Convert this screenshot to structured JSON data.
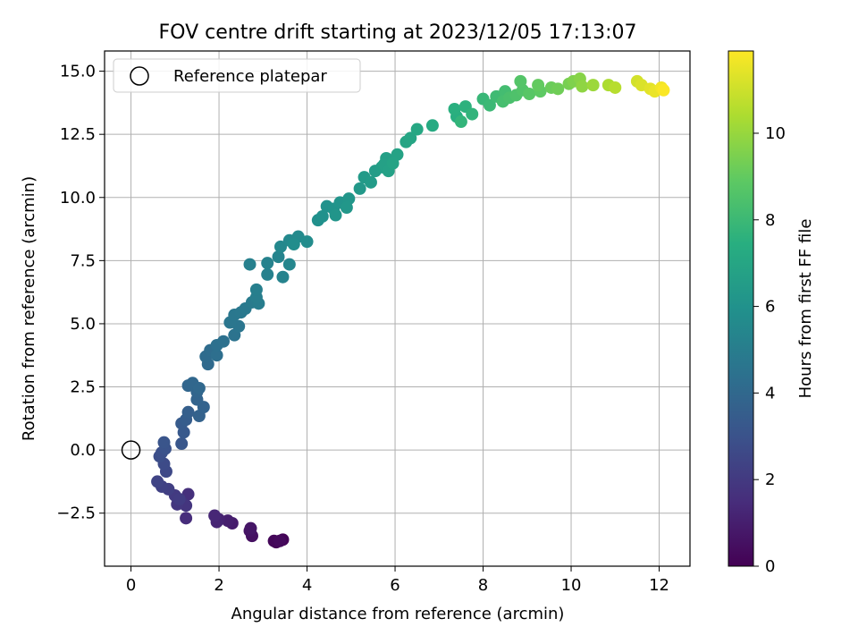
{
  "chart_data": {
    "type": "scatter",
    "title": "FOV centre drift starting at 2023/12/05 17:13:07",
    "xlabel": "Angular distance from reference (arcmin)",
    "ylabel": "Rotation from reference (arcmin)",
    "xlim": [
      -0.6,
      12.7
    ],
    "ylim": [
      -4.6,
      15.8
    ],
    "xticks": [
      0,
      2,
      4,
      6,
      8,
      10,
      12
    ],
    "xtick_labels": [
      "0",
      "2",
      "4",
      "6",
      "8",
      "10",
      "12"
    ],
    "yticks": [
      -2.5,
      0.0,
      2.5,
      5.0,
      7.5,
      10.0,
      12.5,
      15.0
    ],
    "ytick_labels": [
      "−2.5",
      "0.0",
      "2.5",
      "5.0",
      "7.5",
      "10.0",
      "12.5",
      "15.0"
    ],
    "grid": true,
    "legend": {
      "position": "top-left",
      "entries": [
        "Reference platepar"
      ]
    },
    "reference_point": {
      "x": 0,
      "y": 0,
      "label": "Reference platepar"
    },
    "colorbar": {
      "label": "Hours from first FF file",
      "colormap": "viridis",
      "range": [
        0,
        11.9
      ],
      "ticks": [
        0,
        2,
        4,
        6,
        8,
        10
      ],
      "tick_labels": [
        "0",
        "2",
        "4",
        "6",
        "8",
        "10"
      ]
    },
    "series": [
      {
        "points": [
          {
            "x": 3.3,
            "y": -3.65,
            "t": 0.0
          },
          {
            "x": 3.45,
            "y": -3.55,
            "t": 0.1
          },
          {
            "x": 3.25,
            "y": -3.6,
            "t": 0.2
          },
          {
            "x": 3.38,
            "y": -3.6,
            "t": 0.3
          },
          {
            "x": 2.75,
            "y": -3.4,
            "t": 0.5
          },
          {
            "x": 2.7,
            "y": -3.2,
            "t": 0.6
          },
          {
            "x": 2.72,
            "y": -3.1,
            "t": 0.7
          },
          {
            "x": 2.3,
            "y": -2.9,
            "t": 0.9
          },
          {
            "x": 2.2,
            "y": -2.8,
            "t": 1.0
          },
          {
            "x": 2.0,
            "y": -2.75,
            "t": 1.1
          },
          {
            "x": 1.95,
            "y": -2.85,
            "t": 1.2
          },
          {
            "x": 1.9,
            "y": -2.6,
            "t": 1.3
          },
          {
            "x": 1.25,
            "y": -2.7,
            "t": 1.5
          },
          {
            "x": 1.3,
            "y": -1.75,
            "t": 1.6
          },
          {
            "x": 1.15,
            "y": -2.05,
            "t": 1.7
          },
          {
            "x": 1.25,
            "y": -2.2,
            "t": 1.8
          },
          {
            "x": 1.05,
            "y": -2.15,
            "t": 1.9
          },
          {
            "x": 1.0,
            "y": -1.8,
            "t": 2.0
          },
          {
            "x": 1.1,
            "y": -1.95,
            "t": 2.1
          },
          {
            "x": 0.85,
            "y": -1.55,
            "t": 2.2
          },
          {
            "x": 0.7,
            "y": -1.45,
            "t": 2.3
          },
          {
            "x": 0.6,
            "y": -1.25,
            "t": 2.4
          },
          {
            "x": 0.8,
            "y": -0.85,
            "t": 2.6
          },
          {
            "x": 0.75,
            "y": -0.55,
            "t": 2.7
          },
          {
            "x": 0.65,
            "y": -0.25,
            "t": 2.8
          },
          {
            "x": 0.7,
            "y": -0.1,
            "t": 2.9
          },
          {
            "x": 0.78,
            "y": 0.05,
            "t": 3.0
          },
          {
            "x": 0.75,
            "y": 0.3,
            "t": 3.1
          },
          {
            "x": 1.15,
            "y": 0.25,
            "t": 3.2
          },
          {
            "x": 1.2,
            "y": 0.7,
            "t": 3.3
          },
          {
            "x": 1.15,
            "y": 1.05,
            "t": 3.4
          },
          {
            "x": 1.25,
            "y": 1.2,
            "t": 3.5
          },
          {
            "x": 1.3,
            "y": 1.5,
            "t": 3.6
          },
          {
            "x": 1.55,
            "y": 1.35,
            "t": 3.7
          },
          {
            "x": 1.65,
            "y": 1.7,
            "t": 3.75
          },
          {
            "x": 1.5,
            "y": 2.0,
            "t": 3.8
          },
          {
            "x": 1.5,
            "y": 2.3,
            "t": 3.85
          },
          {
            "x": 1.3,
            "y": 2.55,
            "t": 3.9
          },
          {
            "x": 1.4,
            "y": 2.65,
            "t": 3.95
          },
          {
            "x": 1.55,
            "y": 2.45,
            "t": 4.0
          },
          {
            "x": 1.75,
            "y": 3.4,
            "t": 4.1
          },
          {
            "x": 1.7,
            "y": 3.7,
            "t": 4.15
          },
          {
            "x": 1.8,
            "y": 3.95,
            "t": 4.2
          },
          {
            "x": 1.95,
            "y": 3.75,
            "t": 4.3
          },
          {
            "x": 1.95,
            "y": 4.15,
            "t": 4.35
          },
          {
            "x": 2.1,
            "y": 4.3,
            "t": 4.4
          },
          {
            "x": 2.35,
            "y": 4.55,
            "t": 4.5
          },
          {
            "x": 2.45,
            "y": 4.9,
            "t": 4.6
          },
          {
            "x": 2.25,
            "y": 5.05,
            "t": 4.65
          },
          {
            "x": 2.35,
            "y": 5.35,
            "t": 4.7
          },
          {
            "x": 2.5,
            "y": 5.45,
            "t": 4.75
          },
          {
            "x": 2.6,
            "y": 5.6,
            "t": 4.8
          },
          {
            "x": 2.75,
            "y": 5.85,
            "t": 4.9
          },
          {
            "x": 2.9,
            "y": 5.8,
            "t": 5.0
          },
          {
            "x": 2.85,
            "y": 6.05,
            "t": 5.05
          },
          {
            "x": 2.85,
            "y": 6.35,
            "t": 5.1
          },
          {
            "x": 2.7,
            "y": 7.35,
            "t": 5.15
          },
          {
            "x": 3.1,
            "y": 6.95,
            "t": 5.2
          },
          {
            "x": 3.1,
            "y": 7.4,
            "t": 5.25
          },
          {
            "x": 3.45,
            "y": 6.85,
            "t": 5.3
          },
          {
            "x": 3.35,
            "y": 7.65,
            "t": 5.35
          },
          {
            "x": 3.6,
            "y": 7.35,
            "t": 5.4
          },
          {
            "x": 3.4,
            "y": 8.05,
            "t": 5.5
          },
          {
            "x": 3.6,
            "y": 8.3,
            "t": 5.55
          },
          {
            "x": 3.8,
            "y": 8.45,
            "t": 5.6
          },
          {
            "x": 4.0,
            "y": 8.25,
            "t": 5.7
          },
          {
            "x": 3.7,
            "y": 8.15,
            "t": 5.75
          },
          {
            "x": 4.25,
            "y": 9.1,
            "t": 5.9
          },
          {
            "x": 4.35,
            "y": 9.25,
            "t": 5.95
          },
          {
            "x": 4.45,
            "y": 9.65,
            "t": 6.0
          },
          {
            "x": 4.6,
            "y": 9.55,
            "t": 6.05
          },
          {
            "x": 4.75,
            "y": 9.8,
            "t": 6.1
          },
          {
            "x": 4.65,
            "y": 9.3,
            "t": 6.15
          },
          {
            "x": 4.95,
            "y": 9.95,
            "t": 6.2
          },
          {
            "x": 4.9,
            "y": 9.6,
            "t": 6.25
          },
          {
            "x": 5.2,
            "y": 10.35,
            "t": 6.3
          },
          {
            "x": 5.3,
            "y": 10.8,
            "t": 6.4
          },
          {
            "x": 5.45,
            "y": 10.6,
            "t": 6.45
          },
          {
            "x": 5.55,
            "y": 11.05,
            "t": 6.5
          },
          {
            "x": 5.7,
            "y": 11.2,
            "t": 6.6
          },
          {
            "x": 5.8,
            "y": 11.55,
            "t": 6.65
          },
          {
            "x": 5.75,
            "y": 11.3,
            "t": 6.7
          },
          {
            "x": 5.85,
            "y": 11.05,
            "t": 6.75
          },
          {
            "x": 6.05,
            "y": 11.7,
            "t": 6.8
          },
          {
            "x": 5.95,
            "y": 11.35,
            "t": 6.85
          },
          {
            "x": 6.25,
            "y": 12.2,
            "t": 6.95
          },
          {
            "x": 6.35,
            "y": 12.35,
            "t": 7.0
          },
          {
            "x": 6.5,
            "y": 12.7,
            "t": 7.1
          },
          {
            "x": 6.85,
            "y": 12.85,
            "t": 7.25
          },
          {
            "x": 7.4,
            "y": 13.2,
            "t": 7.45
          },
          {
            "x": 7.35,
            "y": 13.5,
            "t": 7.5
          },
          {
            "x": 7.6,
            "y": 13.6,
            "t": 7.6
          },
          {
            "x": 7.75,
            "y": 13.3,
            "t": 7.7
          },
          {
            "x": 7.5,
            "y": 13.0,
            "t": 7.75
          },
          {
            "x": 8.0,
            "y": 13.9,
            "t": 7.9
          },
          {
            "x": 8.15,
            "y": 13.65,
            "t": 8.0
          },
          {
            "x": 8.3,
            "y": 14.0,
            "t": 8.1
          },
          {
            "x": 8.5,
            "y": 14.2,
            "t": 8.2
          },
          {
            "x": 8.45,
            "y": 13.8,
            "t": 8.3
          },
          {
            "x": 8.6,
            "y": 13.95,
            "t": 8.4
          },
          {
            "x": 8.75,
            "y": 14.05,
            "t": 8.5
          },
          {
            "x": 8.9,
            "y": 14.25,
            "t": 8.6
          },
          {
            "x": 8.85,
            "y": 14.6,
            "t": 8.65
          },
          {
            "x": 9.05,
            "y": 14.1,
            "t": 8.75
          },
          {
            "x": 9.3,
            "y": 14.2,
            "t": 8.9
          },
          {
            "x": 9.25,
            "y": 14.45,
            "t": 9.0
          },
          {
            "x": 9.55,
            "y": 14.35,
            "t": 9.15
          },
          {
            "x": 9.7,
            "y": 14.3,
            "t": 9.25
          },
          {
            "x": 9.95,
            "y": 14.5,
            "t": 9.4
          },
          {
            "x": 10.05,
            "y": 14.6,
            "t": 9.55
          },
          {
            "x": 10.2,
            "y": 14.7,
            "t": 9.7
          },
          {
            "x": 10.25,
            "y": 14.4,
            "t": 9.85
          },
          {
            "x": 10.5,
            "y": 14.45,
            "t": 10.1
          },
          {
            "x": 10.85,
            "y": 14.45,
            "t": 10.4
          },
          {
            "x": 11.0,
            "y": 14.35,
            "t": 10.6
          },
          {
            "x": 11.5,
            "y": 14.6,
            "t": 11.1
          },
          {
            "x": 11.6,
            "y": 14.45,
            "t": 11.25
          },
          {
            "x": 11.8,
            "y": 14.3,
            "t": 11.4
          },
          {
            "x": 11.9,
            "y": 14.2,
            "t": 11.55
          },
          {
            "x": 12.05,
            "y": 14.35,
            "t": 11.7
          },
          {
            "x": 12.1,
            "y": 14.25,
            "t": 11.85
          }
        ]
      }
    ]
  }
}
